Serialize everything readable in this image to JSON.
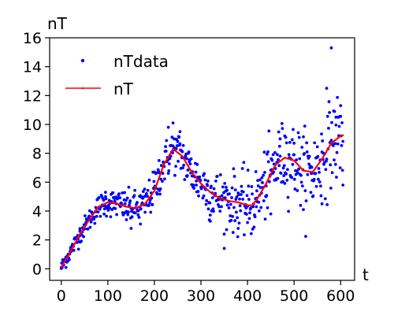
{
  "chart_data": {
    "type": "scatter",
    "title": "",
    "xlabel": "t",
    "ylabel": "nT",
    "xlim": [
      -25,
      630
    ],
    "ylim": [
      -0.8,
      16
    ],
    "xticks": [
      0,
      100,
      200,
      300,
      400,
      500,
      600
    ],
    "yticks": [
      0,
      2,
      4,
      6,
      8,
      10,
      12,
      14,
      16
    ],
    "grid": false,
    "legend": {
      "placement": "upper-left",
      "entries": [
        {
          "label": "nTdata",
          "style": "points",
          "color": "#0000ff"
        },
        {
          "label": "nT",
          "style": "line-with-marker",
          "color": "#ff0000"
        }
      ]
    },
    "series": [
      {
        "name": "nTdata",
        "kind": "scatter",
        "color": "#0000ff",
        "spread_model": "points scattered around the fitted curve; spread widens with t",
        "sample_points": [
          [
            0,
            0.1
          ],
          [
            10,
            0.8
          ],
          [
            20,
            1.3
          ],
          [
            40,
            2.6
          ],
          [
            60,
            3.6
          ],
          [
            80,
            4.2
          ],
          [
            95,
            5.3
          ],
          [
            120,
            4.9
          ],
          [
            140,
            3.4
          ],
          [
            150,
            2.8
          ],
          [
            170,
            3.1
          ],
          [
            200,
            6.7
          ],
          [
            210,
            7.5
          ],
          [
            230,
            9.8
          ],
          [
            240,
            10.1
          ],
          [
            255,
            9.5
          ],
          [
            270,
            6.4
          ],
          [
            290,
            5.8
          ],
          [
            320,
            3.3
          ],
          [
            350,
            2.4
          ],
          [
            380,
            2.8
          ],
          [
            400,
            3.2
          ],
          [
            420,
            5.4
          ],
          [
            440,
            5.0
          ],
          [
            450,
            3.8
          ],
          [
            470,
            9.0
          ],
          [
            480,
            9.2
          ],
          [
            500,
            8.7
          ],
          [
            520,
            4.1
          ],
          [
            540,
            5.0
          ],
          [
            560,
            4.5
          ],
          [
            570,
            12.5
          ],
          [
            580,
            15.3
          ],
          [
            590,
            10.5
          ],
          [
            600,
            11.3
          ],
          [
            605,
            5.8
          ]
        ]
      },
      {
        "name": "nT",
        "kind": "line",
        "color": "#ff0000",
        "points": [
          [
            0,
            0.1
          ],
          [
            20,
            1.2
          ],
          [
            40,
            2.4
          ],
          [
            60,
            3.4
          ],
          [
            80,
            4.3
          ],
          [
            100,
            4.6
          ],
          [
            120,
            4.5
          ],
          [
            140,
            4.3
          ],
          [
            160,
            4.2
          ],
          [
            180,
            4.5
          ],
          [
            200,
            5.4
          ],
          [
            220,
            7.2
          ],
          [
            240,
            8.3
          ],
          [
            260,
            7.8
          ],
          [
            280,
            6.7
          ],
          [
            300,
            5.9
          ],
          [
            320,
            5.3
          ],
          [
            340,
            4.9
          ],
          [
            360,
            4.7
          ],
          [
            380,
            4.6
          ],
          [
            400,
            4.4
          ],
          [
            410,
            4.4
          ],
          [
            420,
            4.8
          ],
          [
            440,
            5.9
          ],
          [
            460,
            7.2
          ],
          [
            480,
            7.7
          ],
          [
            500,
            7.5
          ],
          [
            520,
            6.8
          ],
          [
            540,
            6.7
          ],
          [
            560,
            7.6
          ],
          [
            580,
            8.7
          ],
          [
            600,
            9.2
          ],
          [
            605,
            9.25
          ]
        ]
      }
    ]
  }
}
